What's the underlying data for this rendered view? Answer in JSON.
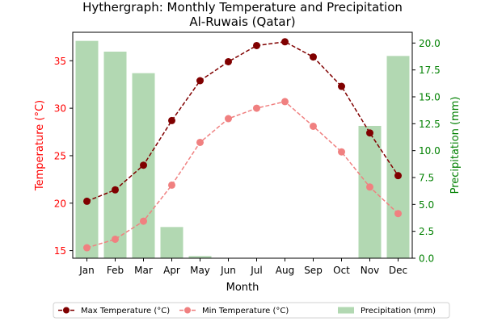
{
  "chart_data": {
    "type": "bar+line",
    "title": "Hythergraph: Monthly Temperature and Precipitation",
    "subtitle": "Al-Ruwais (Qatar)",
    "xlabel": "Month",
    "ylabel_left": "Temperature (°C)",
    "ylabel_right": "Precipitation (mm)",
    "categories": [
      "Jan",
      "Feb",
      "Mar",
      "Apr",
      "May",
      "Jun",
      "Jul",
      "Aug",
      "Sep",
      "Oct",
      "Nov",
      "Dec"
    ],
    "ylim_left": [
      14.2,
      38.0
    ],
    "yticks_left": [
      15,
      20,
      25,
      30,
      35
    ],
    "ylim_right": [
      0,
      21.0
    ],
    "yticks_right": [
      0.0,
      2.5,
      5.0,
      7.5,
      10.0,
      12.5,
      15.0,
      17.5,
      20.0
    ],
    "grid": false,
    "legend_position": "bottom",
    "series": [
      {
        "name": "Max Temperature (°C)",
        "type": "line",
        "axis": "left",
        "color": "#800000",
        "linestyle": "dashed",
        "marker": "circle",
        "values": [
          20.2,
          21.4,
          24.0,
          28.7,
          32.9,
          34.9,
          36.6,
          37.0,
          35.4,
          32.3,
          27.4,
          22.9
        ]
      },
      {
        "name": "Min Temperature (°C)",
        "type": "line",
        "axis": "left",
        "color": "#f08080",
        "linestyle": "dashed",
        "marker": "circle",
        "values": [
          15.3,
          16.2,
          18.1,
          21.9,
          26.4,
          28.9,
          30.0,
          30.7,
          28.1,
          25.4,
          21.7,
          18.9
        ]
      },
      {
        "name": "Precipitation (mm)",
        "type": "bar",
        "axis": "right",
        "color": "#b2d8b2",
        "values": [
          20.2,
          19.2,
          17.2,
          2.9,
          0.2,
          0,
          0,
          0,
          0,
          0,
          12.3,
          18.8
        ]
      }
    ],
    "axis_colors": {
      "left": "#ff0000",
      "right": "#008000",
      "frame": "#000000"
    }
  }
}
